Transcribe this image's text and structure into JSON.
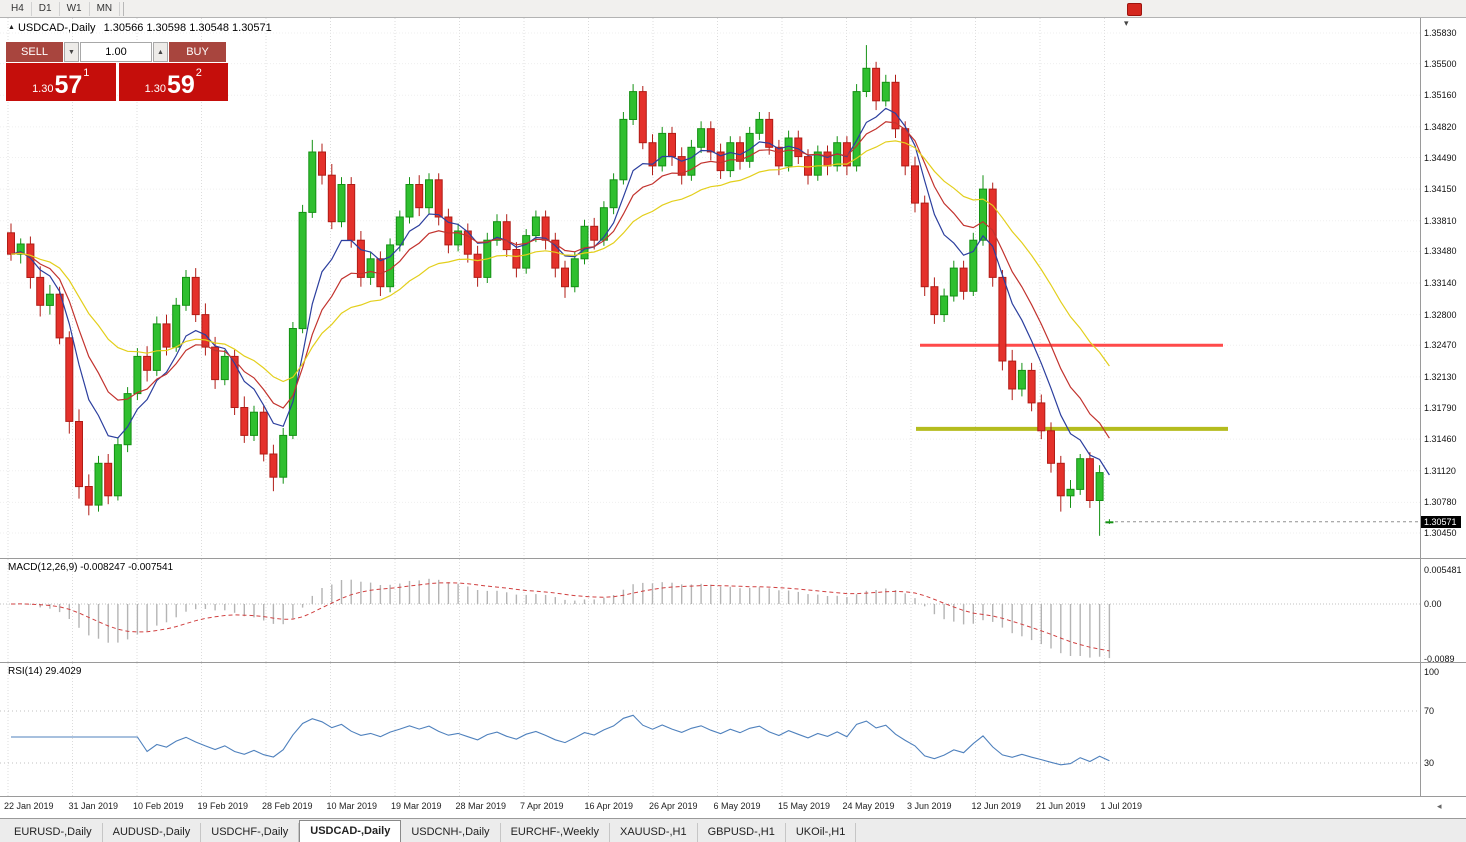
{
  "topbar": {
    "timeframes": [
      "H4",
      "D1",
      "W1",
      "MN"
    ]
  },
  "colors": {
    "bull_fill": "#2fbf2f",
    "bull_border": "#149114",
    "bear_fill": "#e4312b",
    "bear_border": "#b01c16",
    "macd_histogram": "#b4b4b4",
    "macd_signal": "#d04040",
    "rsi_line": "#4f81bd",
    "badge_bg": "#000000",
    "sell_buy_red": "#a8453e",
    "big_price_red": "#c50e0b"
  },
  "chart_header": {
    "symbol": "USDCAD-,Daily",
    "ohlc": "1.30566 1.30598 1.30548 1.30571"
  },
  "trade_panel": {
    "sell_label": "SELL",
    "buy_label": "BUY",
    "volume": "1.00",
    "sell_price": {
      "prefix": "1.30",
      "big": "57",
      "sup": "1"
    },
    "buy_price": {
      "prefix": "1.30",
      "big": "59",
      "sup": "2"
    }
  },
  "chart_data": {
    "type": "candlestick",
    "symbol": "USDCAD",
    "timeframe": "Daily",
    "bid": 1.30571,
    "ask": 1.30592,
    "current_price_label": "1.30571",
    "current_bar": {
      "open": 1.30566,
      "high": 1.30598,
      "low": 1.30548,
      "close": 1.30571
    },
    "y_axis": {
      "labels": [
        "1.35830",
        "1.35500",
        "1.35160",
        "1.34820",
        "1.34490",
        "1.34150",
        "1.33810",
        "1.33480",
        "1.33140",
        "1.32800",
        "1.32470",
        "1.32130",
        "1.31790",
        "1.31460",
        "1.31120",
        "1.30780",
        "1.30450"
      ]
    },
    "x_labels": [
      "22 Jan 2019",
      "31 Jan 2019",
      "10 Feb 2019",
      "19 Feb 2019",
      "28 Feb 2019",
      "10 Mar 2019",
      "19 Mar 2019",
      "28 Mar 2019",
      "7 Apr 2019",
      "16 Apr 2019",
      "26 Apr 2019",
      "6 May 2019",
      "15 May 2019",
      "24 May 2019",
      "3 Jun 2019",
      "12 Jun 2019",
      "21 Jun 2019",
      "1 Jul 2019"
    ],
    "moving_averages": [
      {
        "name": "ma-fast",
        "period": 7,
        "color": "#2c3f9e"
      },
      {
        "name": "ma-mid",
        "period": 12,
        "color": "#c2332e"
      },
      {
        "name": "ma-slow",
        "period": 24,
        "color": "#e3cf1c"
      }
    ],
    "horizontal_lines": [
      {
        "name": "resistance-line",
        "price": 1.3247,
        "color": "#ff4a4a",
        "thickness": 3,
        "x_start": 0.648,
        "x_end": 0.861
      },
      {
        "name": "support-line",
        "price": 1.3157,
        "color": "#b4bc1e",
        "thickness": 4,
        "x_start": 0.645,
        "x_end": 0.865
      }
    ],
    "indicators": [
      {
        "name": "MACD",
        "params": "12,26,9",
        "label": "MACD(12,26,9) -0.008247 -0.007541",
        "values": [
          -0.008247,
          -0.007541
        ],
        "axis_labels": [
          "0.005481",
          "0.00",
          "-0.0089"
        ]
      },
      {
        "name": "RSI",
        "params": "14",
        "label": "RSI(14) 29.4029",
        "value": 29.4029,
        "levels": [
          70,
          30
        ],
        "axis_labels": [
          "100",
          "70",
          "30"
        ]
      }
    ],
    "candles": [
      [
        1.3368,
        1.3378,
        1.3338,
        1.3345
      ],
      [
        1.3345,
        1.3362,
        1.3335,
        1.3356
      ],
      [
        1.3356,
        1.3364,
        1.3308,
        1.332
      ],
      [
        1.332,
        1.3332,
        1.3278,
        1.329
      ],
      [
        1.329,
        1.3312,
        1.328,
        1.3302
      ],
      [
        1.3302,
        1.331,
        1.3248,
        1.3255
      ],
      [
        1.3255,
        1.3262,
        1.3152,
        1.3165
      ],
      [
        1.3165,
        1.3178,
        1.3082,
        1.3095
      ],
      [
        1.3095,
        1.3108,
        1.3064,
        1.3075
      ],
      [
        1.3075,
        1.3128,
        1.3068,
        1.312
      ],
      [
        1.312,
        1.313,
        1.3076,
        1.3085
      ],
      [
        1.3085,
        1.3148,
        1.308,
        1.314
      ],
      [
        1.314,
        1.3202,
        1.3132,
        1.3195
      ],
      [
        1.3195,
        1.3244,
        1.3188,
        1.3235
      ],
      [
        1.3235,
        1.3246,
        1.3208,
        1.322
      ],
      [
        1.322,
        1.3278,
        1.3214,
        1.327
      ],
      [
        1.327,
        1.328,
        1.3236,
        1.3245
      ],
      [
        1.3245,
        1.3298,
        1.324,
        1.329
      ],
      [
        1.329,
        1.3328,
        1.3284,
        1.332
      ],
      [
        1.332,
        1.333,
        1.3272,
        1.328
      ],
      [
        1.328,
        1.3292,
        1.3236,
        1.3245
      ],
      [
        1.3245,
        1.3256,
        1.32,
        1.321
      ],
      [
        1.321,
        1.3242,
        1.3204,
        1.3235
      ],
      [
        1.3235,
        1.3242,
        1.3172,
        1.318
      ],
      [
        1.318,
        1.3192,
        1.3142,
        1.315
      ],
      [
        1.315,
        1.3182,
        1.3144,
        1.3175
      ],
      [
        1.3175,
        1.3182,
        1.3122,
        1.313
      ],
      [
        1.313,
        1.314,
        1.309,
        1.3105
      ],
      [
        1.3105,
        1.3158,
        1.3098,
        1.315
      ],
      [
        1.315,
        1.3272,
        1.3146,
        1.3265
      ],
      [
        1.3265,
        1.3398,
        1.326,
        1.339
      ],
      [
        1.339,
        1.3468,
        1.3384,
        1.3455
      ],
      [
        1.3455,
        1.3464,
        1.342,
        1.343
      ],
      [
        1.343,
        1.3442,
        1.3372,
        1.338
      ],
      [
        1.338,
        1.3428,
        1.3374,
        1.342
      ],
      [
        1.342,
        1.3428,
        1.3352,
        1.336
      ],
      [
        1.336,
        1.337,
        1.331,
        1.332
      ],
      [
        1.332,
        1.3348,
        1.3312,
        1.334
      ],
      [
        1.334,
        1.3348,
        1.33,
        1.331
      ],
      [
        1.331,
        1.3362,
        1.3304,
        1.3355
      ],
      [
        1.3355,
        1.3392,
        1.3348,
        1.3385
      ],
      [
        1.3385,
        1.3428,
        1.3378,
        1.342
      ],
      [
        1.342,
        1.343,
        1.3386,
        1.3395
      ],
      [
        1.3395,
        1.3432,
        1.3388,
        1.3425
      ],
      [
        1.3425,
        1.3432,
        1.3376,
        1.3385
      ],
      [
        1.3385,
        1.3394,
        1.3346,
        1.3355
      ],
      [
        1.3355,
        1.3378,
        1.3348,
        1.337
      ],
      [
        1.337,
        1.3378,
        1.3336,
        1.3345
      ],
      [
        1.3345,
        1.3354,
        1.331,
        1.332
      ],
      [
        1.332,
        1.3368,
        1.3314,
        1.336
      ],
      [
        1.336,
        1.3388,
        1.3354,
        1.338
      ],
      [
        1.338,
        1.3388,
        1.3342,
        1.335
      ],
      [
        1.335,
        1.3358,
        1.332,
        1.333
      ],
      [
        1.333,
        1.3372,
        1.3324,
        1.3365
      ],
      [
        1.3365,
        1.3392,
        1.3358,
        1.3385
      ],
      [
        1.3385,
        1.3392,
        1.335,
        1.336
      ],
      [
        1.336,
        1.3368,
        1.332,
        1.333
      ],
      [
        1.333,
        1.3338,
        1.3298,
        1.331
      ],
      [
        1.331,
        1.3348,
        1.3304,
        1.334
      ],
      [
        1.334,
        1.3382,
        1.3334,
        1.3375
      ],
      [
        1.3375,
        1.3384,
        1.335,
        1.336
      ],
      [
        1.336,
        1.3402,
        1.3354,
        1.3395
      ],
      [
        1.3395,
        1.3432,
        1.3388,
        1.3425
      ],
      [
        1.3425,
        1.3498,
        1.342,
        1.349
      ],
      [
        1.349,
        1.3528,
        1.3484,
        1.352
      ],
      [
        1.352,
        1.3526,
        1.3458,
        1.3465
      ],
      [
        1.3465,
        1.3474,
        1.343,
        1.344
      ],
      [
        1.344,
        1.3482,
        1.3434,
        1.3475
      ],
      [
        1.3475,
        1.3482,
        1.344,
        1.345
      ],
      [
        1.345,
        1.346,
        1.342,
        1.343
      ],
      [
        1.343,
        1.3468,
        1.3424,
        1.346
      ],
      [
        1.346,
        1.3488,
        1.3454,
        1.348
      ],
      [
        1.348,
        1.3488,
        1.3446,
        1.3455
      ],
      [
        1.3455,
        1.3464,
        1.3426,
        1.3435
      ],
      [
        1.3435,
        1.3472,
        1.3428,
        1.3465
      ],
      [
        1.3465,
        1.3472,
        1.3436,
        1.3445
      ],
      [
        1.3445,
        1.3482,
        1.3438,
        1.3475
      ],
      [
        1.3475,
        1.3498,
        1.3468,
        1.349
      ],
      [
        1.349,
        1.3498,
        1.3452,
        1.346
      ],
      [
        1.346,
        1.3468,
        1.343,
        1.344
      ],
      [
        1.344,
        1.3478,
        1.3434,
        1.347
      ],
      [
        1.347,
        1.3478,
        1.3442,
        1.345
      ],
      [
        1.345,
        1.3458,
        1.342,
        1.343
      ],
      [
        1.343,
        1.3462,
        1.3424,
        1.3455
      ],
      [
        1.3455,
        1.3462,
        1.343,
        1.344
      ],
      [
        1.344,
        1.3472,
        1.3434,
        1.3465
      ],
      [
        1.3465,
        1.3472,
        1.343,
        1.344
      ],
      [
        1.344,
        1.3528,
        1.3434,
        1.352
      ],
      [
        1.352,
        1.357,
        1.3514,
        1.3545
      ],
      [
        1.3545,
        1.3552,
        1.35,
        1.351
      ],
      [
        1.351,
        1.3538,
        1.3504,
        1.353
      ],
      [
        1.353,
        1.3538,
        1.347,
        1.348
      ],
      [
        1.348,
        1.3488,
        1.343,
        1.344
      ],
      [
        1.344,
        1.345,
        1.339,
        1.34
      ],
      [
        1.34,
        1.3408,
        1.33,
        1.331
      ],
      [
        1.331,
        1.332,
        1.327,
        1.328
      ],
      [
        1.328,
        1.3308,
        1.3272,
        1.33
      ],
      [
        1.33,
        1.3338,
        1.3294,
        1.333
      ],
      [
        1.333,
        1.3338,
        1.3296,
        1.3305
      ],
      [
        1.3305,
        1.3368,
        1.33,
        1.336
      ],
      [
        1.336,
        1.343,
        1.3354,
        1.3415
      ],
      [
        1.3415,
        1.3422,
        1.331,
        1.332
      ],
      [
        1.332,
        1.3328,
        1.322,
        1.323
      ],
      [
        1.323,
        1.3242,
        1.3188,
        1.32
      ],
      [
        1.32,
        1.3228,
        1.3192,
        1.322
      ],
      [
        1.322,
        1.3228,
        1.3176,
        1.3185
      ],
      [
        1.3185,
        1.3194,
        1.3146,
        1.3155
      ],
      [
        1.3155,
        1.3164,
        1.311,
        1.312
      ],
      [
        1.312,
        1.3128,
        1.3068,
        1.3085
      ],
      [
        1.3085,
        1.3102,
        1.3072,
        1.3092
      ],
      [
        1.3092,
        1.313,
        1.3086,
        1.3125
      ],
      [
        1.3125,
        1.3132,
        1.3072,
        1.308
      ],
      [
        1.308,
        1.3118,
        1.3042,
        1.311
      ],
      [
        1.30566,
        1.30598,
        1.30548,
        1.30571
      ]
    ]
  },
  "tabs": [
    {
      "label": "EURUSD-,Daily",
      "active": false
    },
    {
      "label": "AUDUSD-,Daily",
      "active": false
    },
    {
      "label": "USDCHF-,Daily",
      "active": false
    },
    {
      "label": "USDCAD-,Daily",
      "active": true
    },
    {
      "label": "USDCNH-,Daily",
      "active": false
    },
    {
      "label": "EURCHF-,Weekly",
      "active": false
    },
    {
      "label": "XAUUSD-,H1",
      "active": false
    },
    {
      "label": "GBPUSD-,H1",
      "active": false
    },
    {
      "label": "UKOil-,H1",
      "active": false
    }
  ],
  "misc": {
    "shift_marker": "▾",
    "scroll_end_marker": "◂"
  }
}
